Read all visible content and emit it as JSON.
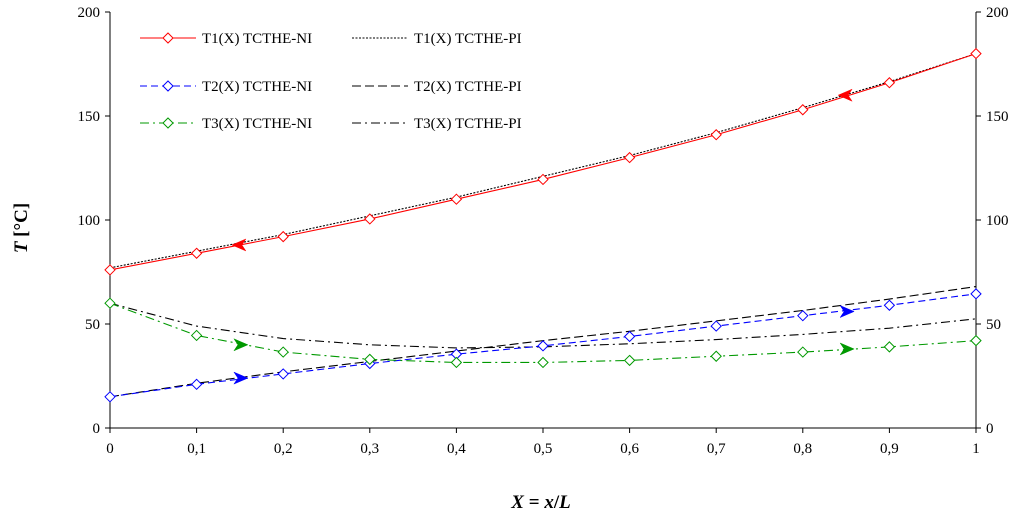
{
  "chart_data": {
    "type": "line",
    "title": "",
    "xlabel": "X = x/L",
    "xlabel_parts": [
      "X",
      " = ",
      "x",
      "/",
      "L"
    ],
    "ylabel": "T [°C]",
    "ylabel_parts": [
      "T",
      " [°C]"
    ],
    "xlim": [
      0,
      1
    ],
    "ylim": [
      0,
      200
    ],
    "x_ticks": [
      0,
      0.1,
      0.2,
      0.3,
      0.4,
      0.5,
      0.6,
      0.7,
      0.8,
      0.9,
      1
    ],
    "x_tick_labels": [
      "0",
      "0,1",
      "0,2",
      "0,3",
      "0,4",
      "0,5",
      "0,6",
      "0,7",
      "0,8",
      "0,9",
      "1"
    ],
    "y_ticks": [
      0,
      50,
      100,
      150,
      200
    ],
    "y_tick_labels": [
      "0",
      "50",
      "100",
      "150",
      "200"
    ],
    "y2_ticks": [
      0,
      50,
      100,
      150,
      200
    ],
    "y2_tick_labels": [
      "0",
      "50",
      "100",
      "150",
      "200"
    ],
    "grid": false,
    "legend_position": "top-left",
    "x": [
      0,
      0.1,
      0.2,
      0.3,
      0.4,
      0.5,
      0.6,
      0.7,
      0.8,
      0.9,
      1
    ],
    "series": [
      {
        "name": "T1(X) TCTHE-NI",
        "color": "#ff0000",
        "dash": "solid",
        "marker": "diamond",
        "values": [
          76,
          84,
          92,
          100.5,
          110,
          119.5,
          130,
          141,
          153,
          166,
          180
        ],
        "arrow": {
          "x": 0.15,
          "y": 88,
          "direction": "left"
        }
      },
      {
        "name": "T1(X) TCTHE-PI",
        "color": "#000000",
        "dash": "dotted",
        "marker": "none",
        "values": [
          77,
          85,
          93,
          102,
          111,
          121,
          131,
          142,
          154,
          166.5,
          180
        ]
      },
      {
        "name": "T2(X) TCTHE-NI",
        "color": "#0000ff",
        "dash": "dashed",
        "marker": "diamond",
        "values": [
          15,
          21,
          26,
          31,
          35.5,
          39.5,
          44,
          49,
          54,
          59,
          64.5
        ],
        "arrow": {
          "x": 0.15,
          "y": 24,
          "direction": "right"
        }
      },
      {
        "name": "T2(X) TCTHE-PI",
        "color": "#000000",
        "dash": "longdash",
        "marker": "none",
        "values": [
          15,
          21.5,
          27,
          32,
          37,
          42,
          46.5,
          51.5,
          56.5,
          62,
          68
        ]
      },
      {
        "name": "T3(X) TCTHE-NI",
        "color": "#009900",
        "dash": "dashdot",
        "marker": "diamond",
        "values": [
          60,
          44.5,
          36.5,
          33,
          31.5,
          31.5,
          32.5,
          34.5,
          36.5,
          39,
          42
        ],
        "arrow": {
          "x": 0.15,
          "y": 40,
          "direction": "right"
        }
      },
      {
        "name": "T3(X) TCTHE-PI",
        "color": "#000000",
        "dash": "dashdot",
        "marker": "none",
        "values": [
          60,
          49,
          43,
          40,
          38.5,
          39,
          40.5,
          42.5,
          45,
          48,
          52.5
        ]
      }
    ],
    "extra_arrows": [
      {
        "series": "T1(X) TCTHE-NI",
        "x": 0.85,
        "y": 160,
        "direction": "left"
      },
      {
        "series": "T2(X) TCTHE-NI",
        "x": 0.85,
        "y": 56,
        "direction": "right"
      },
      {
        "series": "T3(X) TCTHE-NI",
        "x": 0.85,
        "y": 38,
        "direction": "right"
      }
    ]
  }
}
